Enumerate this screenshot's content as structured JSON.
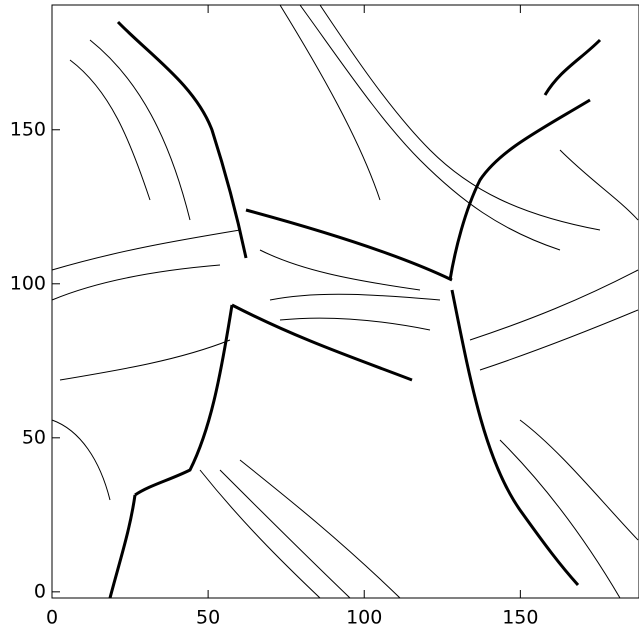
{
  "chart_data": {
    "type": "contour",
    "xlim": [
      0,
      188
    ],
    "ylim": [
      -2,
      190.5
    ],
    "xticks": [
      0,
      50,
      100,
      150
    ],
    "yticks": [
      0,
      50,
      100,
      150
    ]
  }
}
